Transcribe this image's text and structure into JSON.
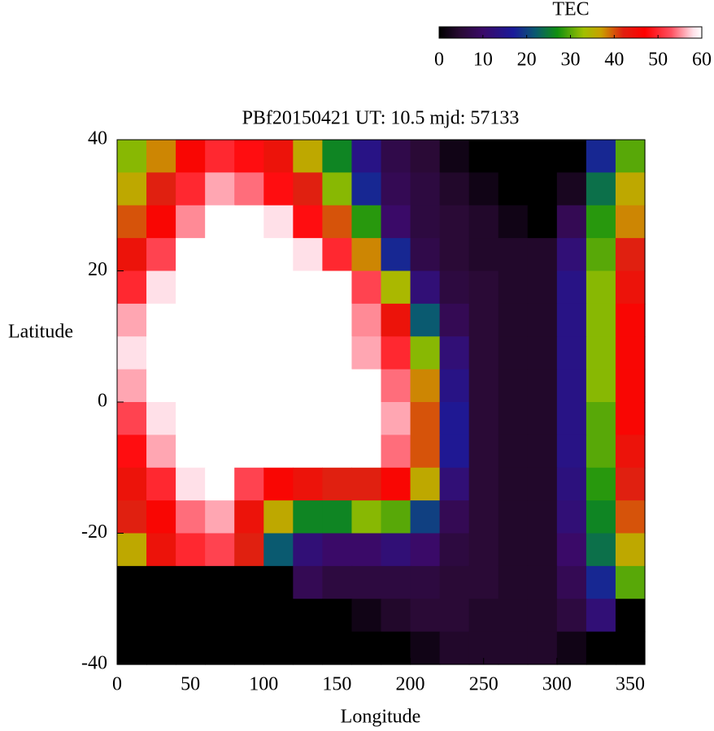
{
  "chart_data": {
    "type": "heatmap",
    "title": "PBf20150421  UT: 10.5  mjd: 57133",
    "xlabel": "Longitude",
    "ylabel": "Latitude",
    "colorbar_label": "TEC",
    "xlim": [
      0,
      360
    ],
    "ylim": [
      -40,
      40
    ],
    "xticks": [
      0,
      50,
      100,
      150,
      200,
      250,
      300,
      350
    ],
    "yticks": [
      -40,
      -20,
      0,
      20,
      40
    ],
    "clim": [
      0,
      60
    ],
    "cticks": [
      0,
      10,
      20,
      30,
      40,
      50,
      60
    ],
    "colorscale": [
      {
        "value": 0,
        "color": "#000000"
      },
      {
        "value": 5,
        "color": "#2a0a36"
      },
      {
        "value": 10,
        "color": "#3a0a68"
      },
      {
        "value": 17,
        "color": "#1a1a9a"
      },
      {
        "value": 22,
        "color": "#0a5a70"
      },
      {
        "value": 27,
        "color": "#109010"
      },
      {
        "value": 33,
        "color": "#a0c000"
      },
      {
        "value": 37,
        "color": "#c8a000"
      },
      {
        "value": 42,
        "color": "#e02010"
      },
      {
        "value": 47,
        "color": "#ff0000"
      },
      {
        "value": 53,
        "color": "#ff5060"
      },
      {
        "value": 58,
        "color": "#ffe0e8"
      },
      {
        "value": 60,
        "color": "#ffffff"
      }
    ],
    "x": [
      10,
      30,
      50,
      70,
      90,
      110,
      130,
      150,
      170,
      190,
      210,
      230,
      250,
      270,
      290,
      310,
      330,
      350
    ],
    "y": [
      37.5,
      32.5,
      27.5,
      22.5,
      17.5,
      12.5,
      7.5,
      2.5,
      -2.5,
      -7.5,
      -12.5,
      -17.5,
      -22.5,
      -27.5,
      -32.5,
      -37.5
    ],
    "z": [
      [
        32,
        38,
        46,
        50,
        48,
        44,
        36,
        26,
        14,
        7,
        5,
        2,
        0,
        0,
        0,
        0,
        18,
        30
      ],
      [
        36,
        42,
        50,
        56,
        54,
        48,
        42,
        32,
        18,
        8,
        6,
        4,
        2,
        0,
        0,
        3,
        24,
        36
      ],
      [
        40,
        46,
        55,
        60,
        60,
        58,
        48,
        40,
        28,
        10,
        6,
        5,
        4,
        2,
        0,
        8,
        28,
        38
      ],
      [
        44,
        52,
        60,
        60,
        60,
        60,
        58,
        50,
        38,
        18,
        7,
        5,
        4,
        4,
        4,
        12,
        30,
        42
      ],
      [
        50,
        58,
        60,
        60,
        60,
        60,
        60,
        60,
        52,
        34,
        12,
        6,
        5,
        4,
        4,
        14,
        32,
        44
      ],
      [
        56,
        60,
        60,
        60,
        60,
        60,
        60,
        60,
        55,
        44,
        22,
        8,
        5,
        4,
        4,
        14,
        32,
        46
      ],
      [
        58,
        60,
        60,
        60,
        60,
        60,
        60,
        60,
        56,
        50,
        32,
        12,
        5,
        4,
        4,
        14,
        32,
        46
      ],
      [
        56,
        60,
        60,
        60,
        60,
        60,
        60,
        60,
        60,
        54,
        38,
        14,
        5,
        4,
        4,
        14,
        32,
        46
      ],
      [
        52,
        58,
        60,
        60,
        60,
        60,
        60,
        60,
        60,
        56,
        40,
        16,
        5,
        4,
        4,
        14,
        30,
        46
      ],
      [
        48,
        56,
        60,
        60,
        60,
        60,
        60,
        60,
        60,
        54,
        40,
        16,
        5,
        4,
        4,
        14,
        30,
        44
      ],
      [
        44,
        50,
        58,
        60,
        52,
        46,
        44,
        42,
        42,
        46,
        36,
        12,
        5,
        4,
        4,
        13,
        28,
        42
      ],
      [
        42,
        46,
        54,
        56,
        44,
        36,
        26,
        26,
        32,
        30,
        20,
        8,
        5,
        4,
        4,
        12,
        26,
        40
      ],
      [
        36,
        44,
        50,
        52,
        42,
        22,
        12,
        10,
        10,
        12,
        10,
        6,
        5,
        4,
        4,
        10,
        24,
        36
      ],
      [
        0,
        0,
        0,
        0,
        0,
        0,
        8,
        6,
        6,
        6,
        6,
        5,
        5,
        4,
        4,
        8,
        18,
        30
      ],
      [
        0,
        0,
        0,
        0,
        0,
        0,
        0,
        0,
        2,
        4,
        5,
        5,
        4,
        4,
        4,
        6,
        12,
        0
      ],
      [
        0,
        0,
        0,
        0,
        0,
        0,
        0,
        0,
        0,
        0,
        2,
        4,
        4,
        4,
        4,
        2,
        0,
        0
      ]
    ]
  }
}
